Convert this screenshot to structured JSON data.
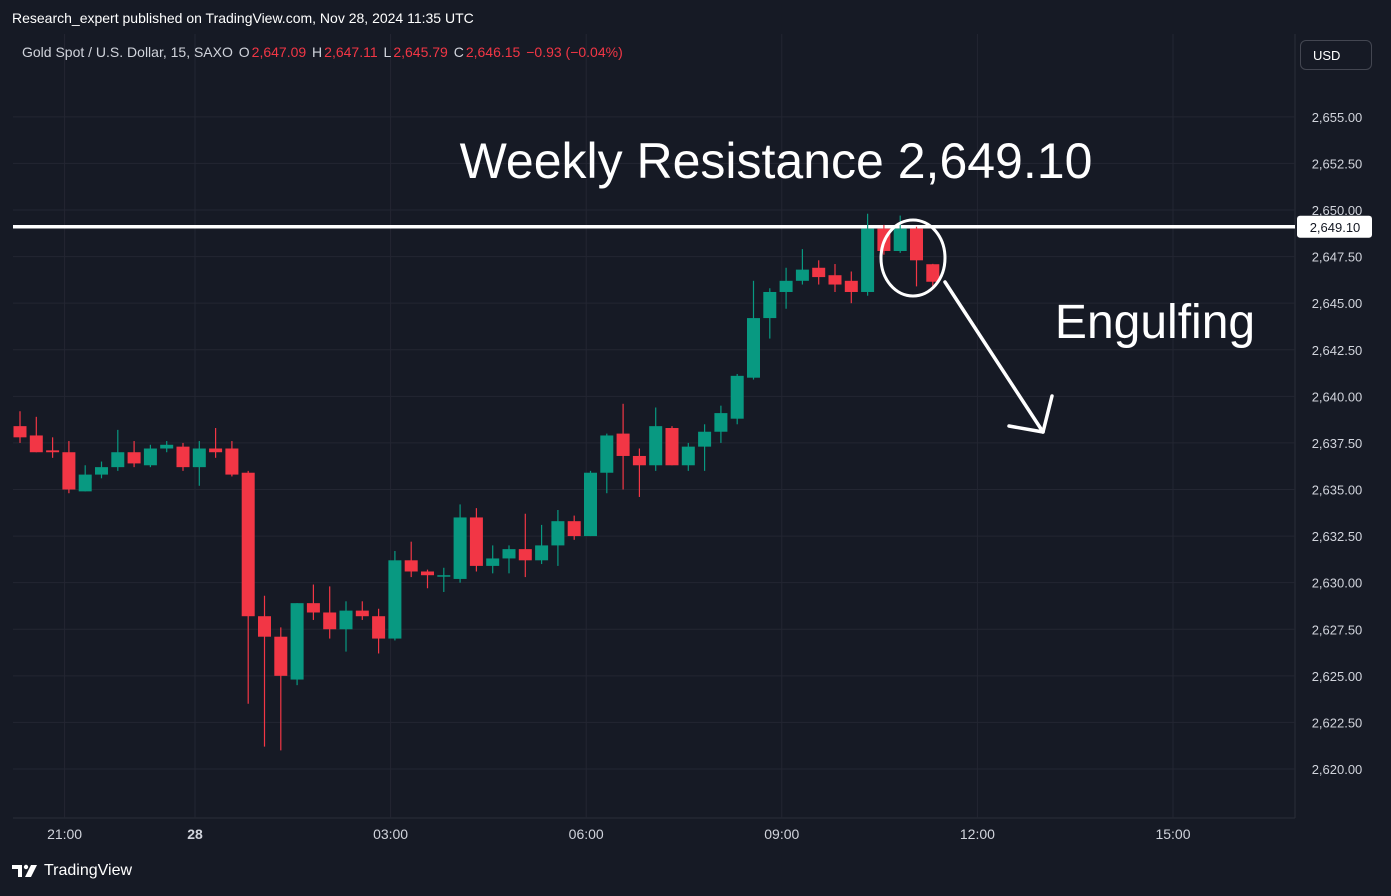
{
  "header": {
    "published": "Research_expert published on TradingView.com, Nov 28, 2024 11:35 UTC"
  },
  "legend": {
    "symbol": "Gold Spot / U.S. Dollar, 15, SAXO",
    "open_label": "O",
    "open_value": "2,647.09",
    "high_label": "H",
    "high_value": "2,647.11",
    "low_label": "L",
    "low_value": "2,645.79",
    "close_label": "C",
    "close_value": "2,646.15",
    "change": "−0.93 (−0.04%)"
  },
  "currency_button": "USD",
  "annotations": {
    "resistance_text": "Weekly Resistance 2,649.10",
    "engulfing_text": "Engulfing",
    "resistance_level": 2649.1,
    "resistance_label": "2,649.10"
  },
  "footer": {
    "brand": "TradingView"
  },
  "colors": {
    "up": "#089981",
    "down": "#f23645",
    "background": "#161a25",
    "grid": "#232632",
    "text": "#d1d4dc"
  },
  "chart_data": {
    "type": "candlestick",
    "ylim": [
      2618.0,
      2659.5
    ],
    "y_ticks": [
      2620.0,
      2622.5,
      2625.0,
      2627.5,
      2630.0,
      2632.5,
      2635.0,
      2637.5,
      2640.0,
      2642.5,
      2645.0,
      2647.5,
      2650.0,
      2652.5,
      2655.0
    ],
    "y_tick_labels": [
      "2,620.00",
      "2,622.50",
      "2,625.00",
      "2,627.50",
      "2,630.00",
      "2,632.50",
      "2,635.00",
      "2,637.50",
      "2,640.00",
      "2,642.50",
      "2,645.00",
      "2,647.50",
      "2,650.00",
      "2,652.50",
      "2,655.00"
    ],
    "x_tick_labels": [
      {
        "label": "21:00",
        "bar": 2,
        "bold": false
      },
      {
        "label": "28",
        "bar": 10,
        "bold": true
      },
      {
        "label": "03:00",
        "bar": 22,
        "bold": false
      },
      {
        "label": "06:00",
        "bar": 34,
        "bold": false
      },
      {
        "label": "09:00",
        "bar": 46,
        "bold": false
      },
      {
        "label": "12:00",
        "bar": 58,
        "bold": false
      },
      {
        "label": "15:00",
        "bar": 70,
        "bold": false
      }
    ],
    "candles": [
      {
        "o": 2638.4,
        "h": 2639.2,
        "l": 2637.5,
        "c": 2637.8
      },
      {
        "o": 2637.9,
        "h": 2638.9,
        "l": 2637.0,
        "c": 2637.0
      },
      {
        "o": 2637.1,
        "h": 2637.8,
        "l": 2636.7,
        "c": 2637.0
      },
      {
        "o": 2637.0,
        "h": 2637.6,
        "l": 2634.8,
        "c": 2635.0
      },
      {
        "o": 2634.9,
        "h": 2636.3,
        "l": 2634.9,
        "c": 2635.8
      },
      {
        "o": 2635.8,
        "h": 2636.5,
        "l": 2635.6,
        "c": 2636.2
      },
      {
        "o": 2636.2,
        "h": 2638.2,
        "l": 2636.0,
        "c": 2637.0
      },
      {
        "o": 2637.0,
        "h": 2637.6,
        "l": 2636.2,
        "c": 2636.4
      },
      {
        "o": 2636.3,
        "h": 2637.4,
        "l": 2636.2,
        "c": 2637.2
      },
      {
        "o": 2637.2,
        "h": 2637.6,
        "l": 2637.0,
        "c": 2637.4
      },
      {
        "o": 2637.3,
        "h": 2637.5,
        "l": 2636.0,
        "c": 2636.2
      },
      {
        "o": 2636.2,
        "h": 2637.6,
        "l": 2635.2,
        "c": 2637.2
      },
      {
        "o": 2637.2,
        "h": 2638.3,
        "l": 2636.7,
        "c": 2637.0
      },
      {
        "o": 2637.2,
        "h": 2637.6,
        "l": 2635.7,
        "c": 2635.8
      },
      {
        "o": 2635.9,
        "h": 2636.0,
        "l": 2623.5,
        "c": 2628.2
      },
      {
        "o": 2628.2,
        "h": 2629.3,
        "l": 2621.2,
        "c": 2627.1
      },
      {
        "o": 2627.1,
        "h": 2627.6,
        "l": 2621.0,
        "c": 2625.0
      },
      {
        "o": 2624.8,
        "h": 2628.9,
        "l": 2624.5,
        "c": 2628.9
      },
      {
        "o": 2628.9,
        "h": 2629.9,
        "l": 2628.0,
        "c": 2628.4
      },
      {
        "o": 2628.4,
        "h": 2629.8,
        "l": 2627.0,
        "c": 2627.5
      },
      {
        "o": 2627.5,
        "h": 2629.0,
        "l": 2626.3,
        "c": 2628.5
      },
      {
        "o": 2628.5,
        "h": 2629.0,
        "l": 2628.0,
        "c": 2628.2
      },
      {
        "o": 2628.2,
        "h": 2628.6,
        "l": 2626.2,
        "c": 2627.0
      },
      {
        "o": 2627.0,
        "h": 2631.7,
        "l": 2626.9,
        "c": 2631.2
      },
      {
        "o": 2631.2,
        "h": 2632.2,
        "l": 2630.3,
        "c": 2630.6
      },
      {
        "o": 2630.6,
        "h": 2630.7,
        "l": 2629.7,
        "c": 2630.4
      },
      {
        "o": 2630.4,
        "h": 2630.8,
        "l": 2629.5,
        "c": 2630.4
      },
      {
        "o": 2630.2,
        "h": 2634.2,
        "l": 2630.0,
        "c": 2633.5
      },
      {
        "o": 2633.5,
        "h": 2634.0,
        "l": 2630.6,
        "c": 2630.9
      },
      {
        "o": 2630.9,
        "h": 2632.0,
        "l": 2630.5,
        "c": 2631.3
      },
      {
        "o": 2631.3,
        "h": 2632.0,
        "l": 2630.5,
        "c": 2631.8
      },
      {
        "o": 2631.8,
        "h": 2633.7,
        "l": 2630.3,
        "c": 2631.2
      },
      {
        "o": 2631.2,
        "h": 2633.1,
        "l": 2631.0,
        "c": 2632.0
      },
      {
        "o": 2632.0,
        "h": 2633.9,
        "l": 2630.9,
        "c": 2633.3
      },
      {
        "o": 2633.3,
        "h": 2633.6,
        "l": 2632.3,
        "c": 2632.5
      },
      {
        "o": 2632.5,
        "h": 2636.0,
        "l": 2632.5,
        "c": 2635.9
      },
      {
        "o": 2635.9,
        "h": 2638.0,
        "l": 2634.8,
        "c": 2637.9
      },
      {
        "o": 2638.0,
        "h": 2639.6,
        "l": 2635.0,
        "c": 2636.8
      },
      {
        "o": 2636.8,
        "h": 2637.2,
        "l": 2634.6,
        "c": 2636.3
      },
      {
        "o": 2636.3,
        "h": 2639.4,
        "l": 2636.0,
        "c": 2638.4
      },
      {
        "o": 2638.3,
        "h": 2638.4,
        "l": 2636.3,
        "c": 2636.3
      },
      {
        "o": 2636.3,
        "h": 2637.5,
        "l": 2636.0,
        "c": 2637.3
      },
      {
        "o": 2637.3,
        "h": 2638.5,
        "l": 2636.0,
        "c": 2638.1
      },
      {
        "o": 2638.1,
        "h": 2639.5,
        "l": 2637.5,
        "c": 2639.1
      },
      {
        "o": 2638.8,
        "h": 2641.2,
        "l": 2638.5,
        "c": 2641.1
      },
      {
        "o": 2641.0,
        "h": 2646.2,
        "l": 2640.9,
        "c": 2644.2
      },
      {
        "o": 2644.2,
        "h": 2645.8,
        "l": 2643.1,
        "c": 2645.6
      },
      {
        "o": 2645.6,
        "h": 2646.9,
        "l": 2644.7,
        "c": 2646.2
      },
      {
        "o": 2646.2,
        "h": 2647.9,
        "l": 2646.0,
        "c": 2646.8
      },
      {
        "o": 2646.9,
        "h": 2647.3,
        "l": 2646.0,
        "c": 2646.4
      },
      {
        "o": 2646.5,
        "h": 2647.1,
        "l": 2645.6,
        "c": 2646.0
      },
      {
        "o": 2646.2,
        "h": 2646.7,
        "l": 2645.0,
        "c": 2645.6
      },
      {
        "o": 2645.6,
        "h": 2649.8,
        "l": 2645.4,
        "c": 2649.0
      },
      {
        "o": 2649.0,
        "h": 2649.2,
        "l": 2647.6,
        "c": 2647.8
      },
      {
        "o": 2647.8,
        "h": 2649.7,
        "l": 2647.7,
        "c": 2649.0
      },
      {
        "o": 2649.0,
        "h": 2649.1,
        "l": 2645.9,
        "c": 2647.3
      },
      {
        "o": 2647.09,
        "h": 2647.11,
        "l": 2645.79,
        "c": 2646.15
      }
    ]
  }
}
